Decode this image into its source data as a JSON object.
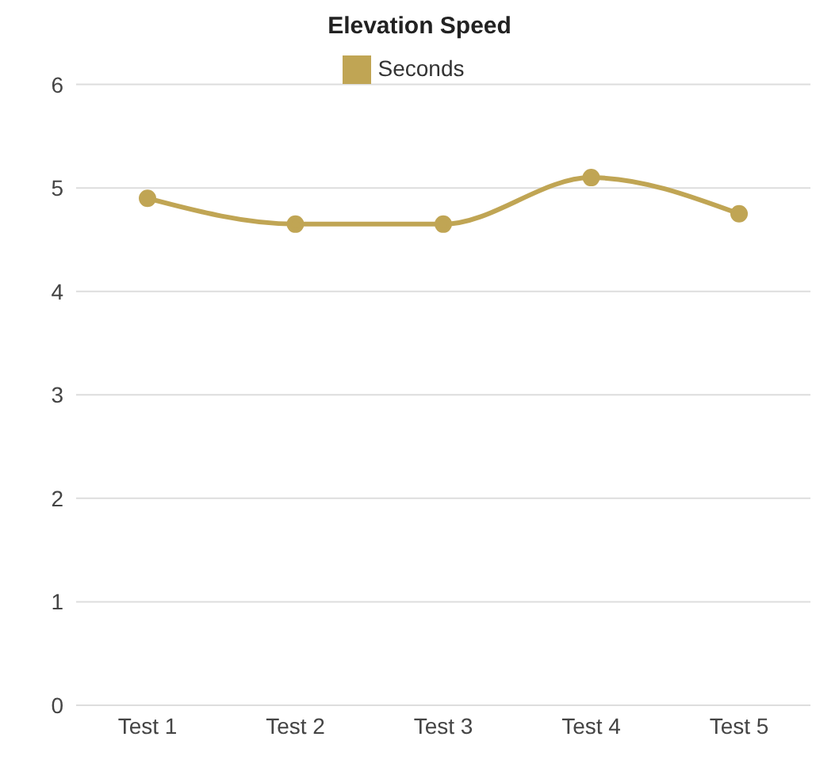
{
  "chart_data": {
    "type": "line",
    "title": "Elevation Speed",
    "categories": [
      "Test 1",
      "Test 2",
      "Test 3",
      "Test 4",
      "Test 5"
    ],
    "series": [
      {
        "name": "Seconds",
        "color": "#c0a554",
        "values": [
          4.9,
          4.65,
          4.65,
          5.1,
          4.75
        ]
      }
    ],
    "ylim": [
      0,
      6
    ],
    "yticks": [
      0,
      1,
      2,
      3,
      4,
      5,
      6
    ],
    "grid": "y",
    "legend": "top",
    "marker": "circle",
    "line_style": "solid"
  }
}
